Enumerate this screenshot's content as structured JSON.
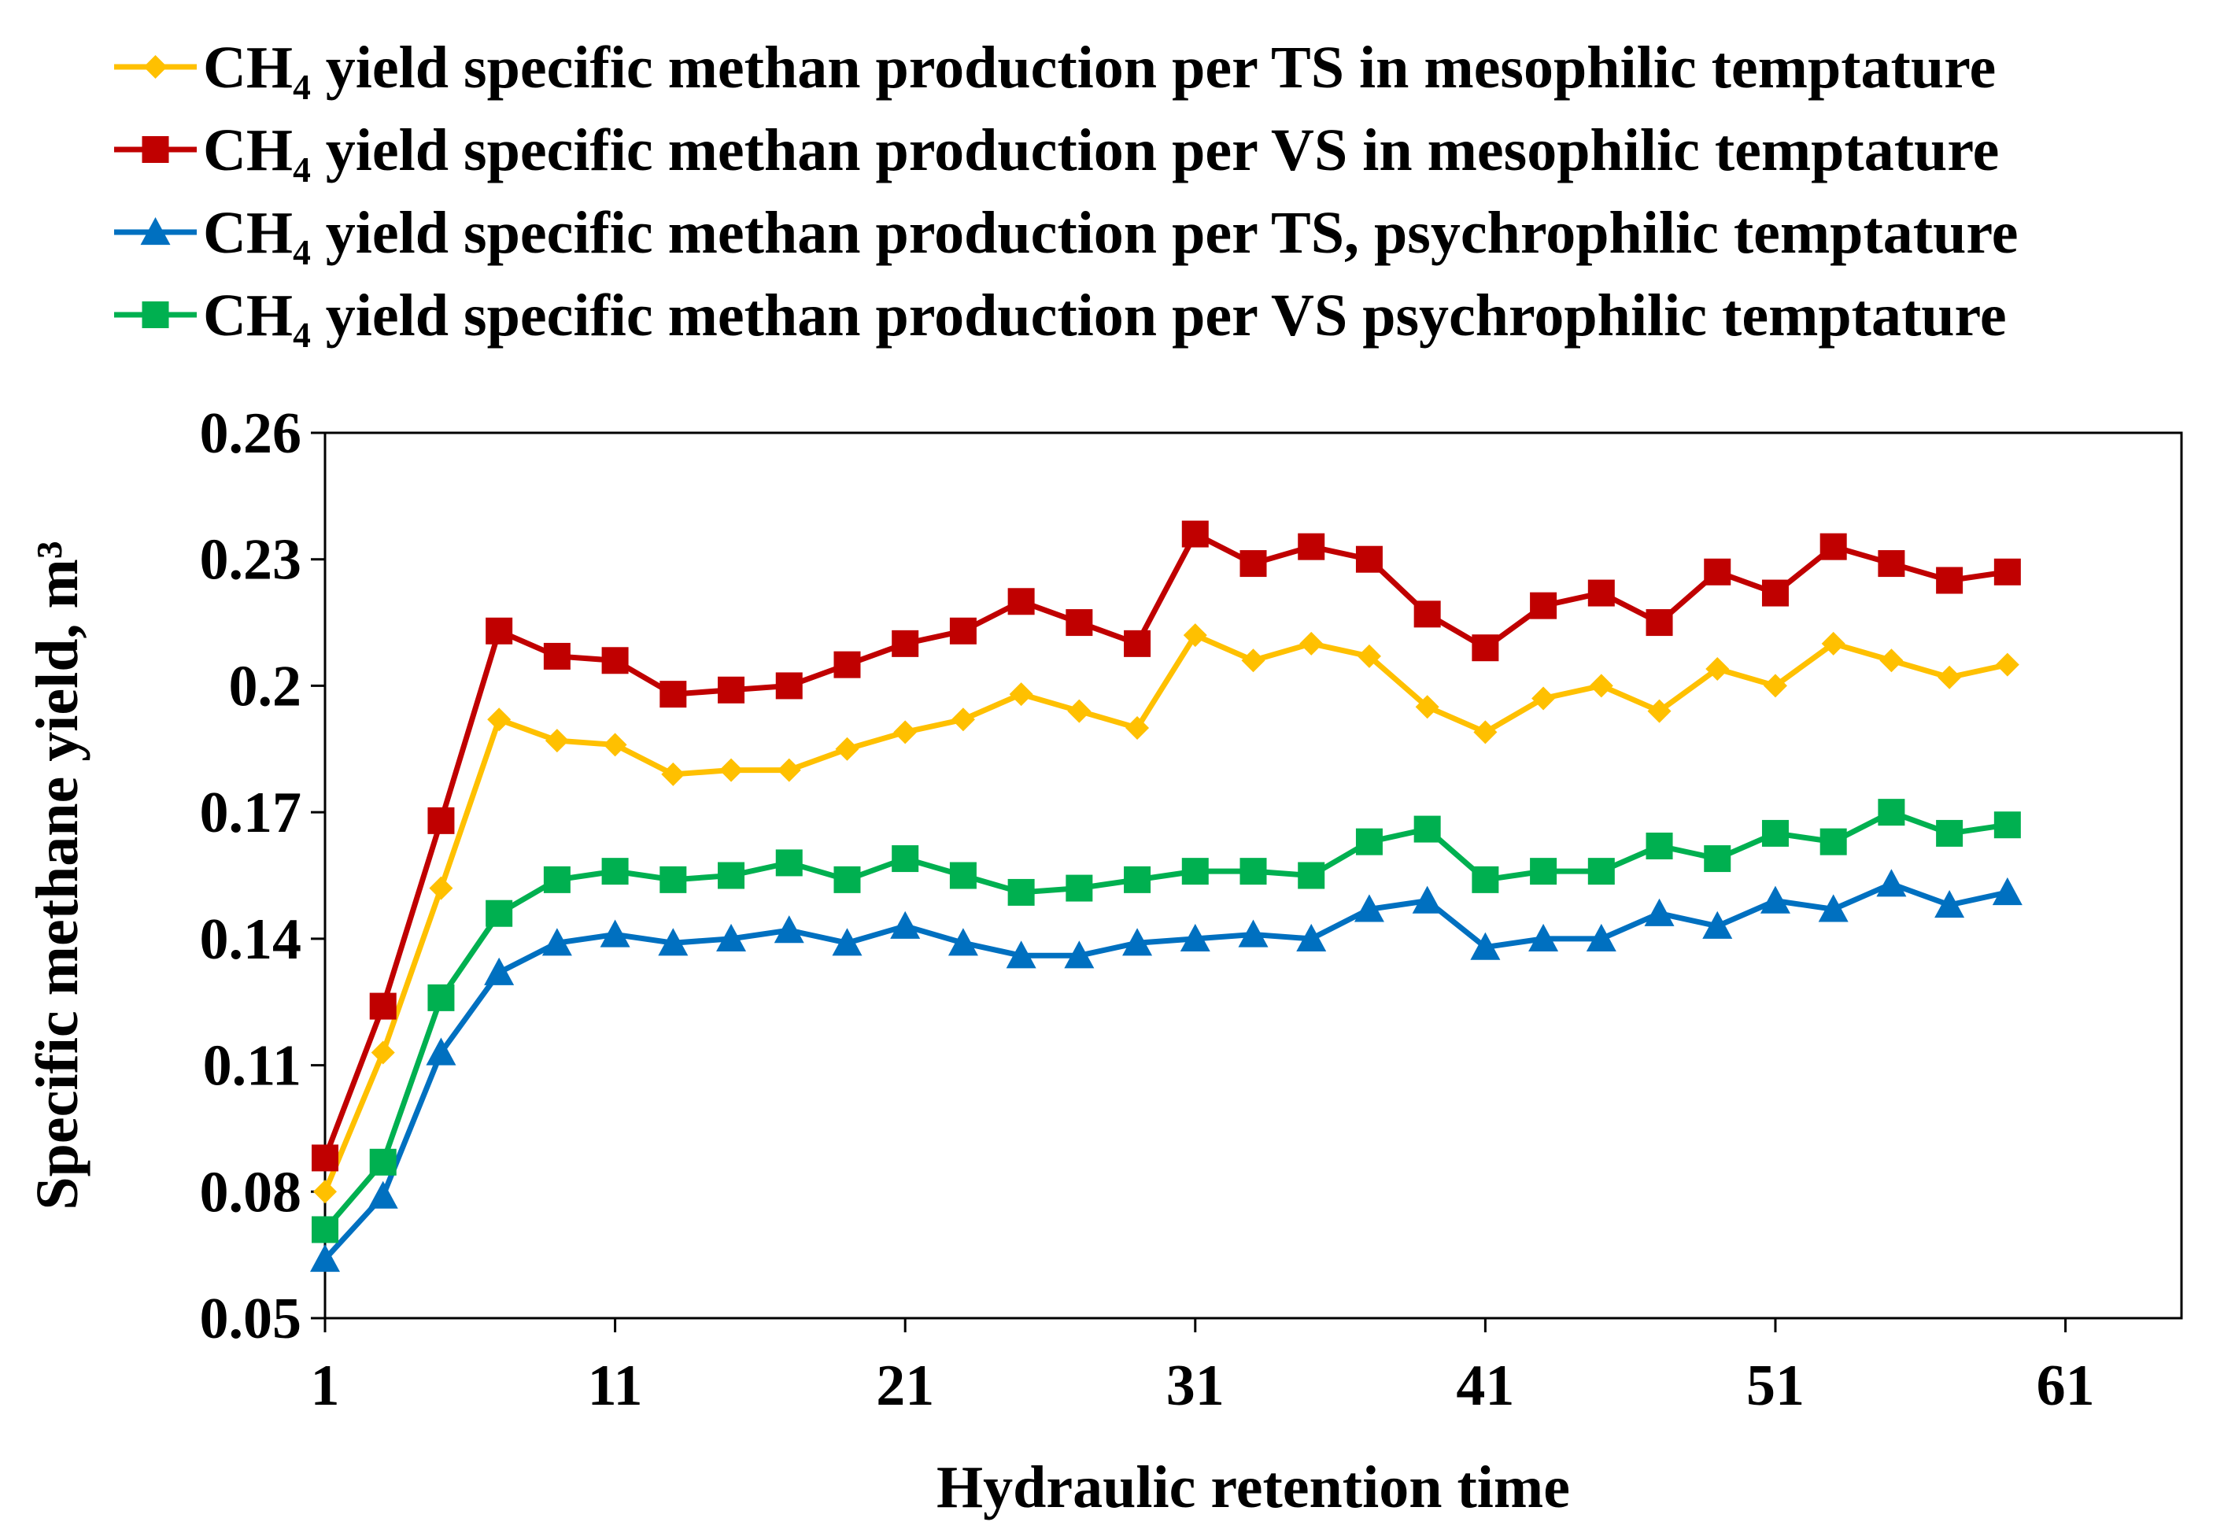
{
  "chart_data": {
    "type": "line",
    "title": "",
    "xlabel": "Hydraulic retention time",
    "ylabel": "Specific methane yield, m³",
    "xlim": [
      1,
      65
    ],
    "ylim": [
      0.05,
      0.26
    ],
    "xticks": [
      "1",
      "11",
      "21",
      "31",
      "41",
      "51",
      "61"
    ],
    "yticks": [
      "0.05",
      "0.08",
      "0.11",
      "0.14",
      "0.17",
      "0.2",
      "0.23",
      "0.26"
    ],
    "grid": false,
    "legend_position": "top",
    "x": [
      1,
      3,
      5,
      7,
      9,
      11,
      13,
      15,
      17,
      19,
      21,
      23,
      25,
      27,
      29,
      31,
      33,
      35,
      37,
      39,
      41,
      43,
      45,
      47,
      49,
      51,
      53,
      55,
      57,
      59
    ],
    "series": [
      {
        "name": "CH₄ yield specific methan production per TS in mesophilic temptature",
        "color": "#ffc000",
        "marker": "diamond",
        "values": [
          0.08,
          0.113,
          0.152,
          0.192,
          0.187,
          0.186,
          0.179,
          0.18,
          0.18,
          0.185,
          0.189,
          0.192,
          0.198,
          0.194,
          0.19,
          0.212,
          0.206,
          0.21,
          0.207,
          0.195,
          0.189,
          0.197,
          0.2,
          0.194,
          0.204,
          0.2,
          0.21,
          0.206,
          0.202,
          0.205
        ]
      },
      {
        "name": "CH₄ yield specific methan production per VS in mesophilic temptature",
        "color": "#c00000",
        "marker": "square",
        "values": [
          0.088,
          0.124,
          0.168,
          0.213,
          0.207,
          0.206,
          0.198,
          0.199,
          0.2,
          0.205,
          0.21,
          0.213,
          0.22,
          0.215,
          0.21,
          0.236,
          0.229,
          0.233,
          0.23,
          0.217,
          0.209,
          0.219,
          0.222,
          0.215,
          0.227,
          0.222,
          0.233,
          0.229,
          0.225,
          0.227
        ]
      },
      {
        "name": "CH₄ yield specific methan production per TS, psychrophilic temptature",
        "color": "#0070c0",
        "marker": "triangle",
        "values": [
          0.064,
          0.079,
          0.113,
          0.132,
          0.139,
          0.141,
          0.139,
          0.14,
          0.142,
          0.139,
          0.143,
          0.139,
          0.136,
          0.136,
          0.139,
          0.14,
          0.141,
          0.14,
          0.147,
          0.149,
          0.138,
          0.14,
          0.14,
          0.146,
          0.143,
          0.149,
          0.147,
          0.153,
          0.148,
          0.151
        ]
      },
      {
        "name": "CH₄ yield specific methan production per VS psychrophilic temptature",
        "color": "#00b050",
        "marker": "square",
        "values": [
          0.071,
          0.087,
          0.126,
          0.146,
          0.154,
          0.156,
          0.154,
          0.155,
          0.158,
          0.154,
          0.159,
          0.155,
          0.151,
          0.152,
          0.154,
          0.156,
          0.156,
          0.155,
          0.163,
          0.166,
          0.154,
          0.156,
          0.156,
          0.162,
          0.159,
          0.165,
          0.163,
          0.17,
          0.165,
          0.167
        ]
      }
    ]
  }
}
